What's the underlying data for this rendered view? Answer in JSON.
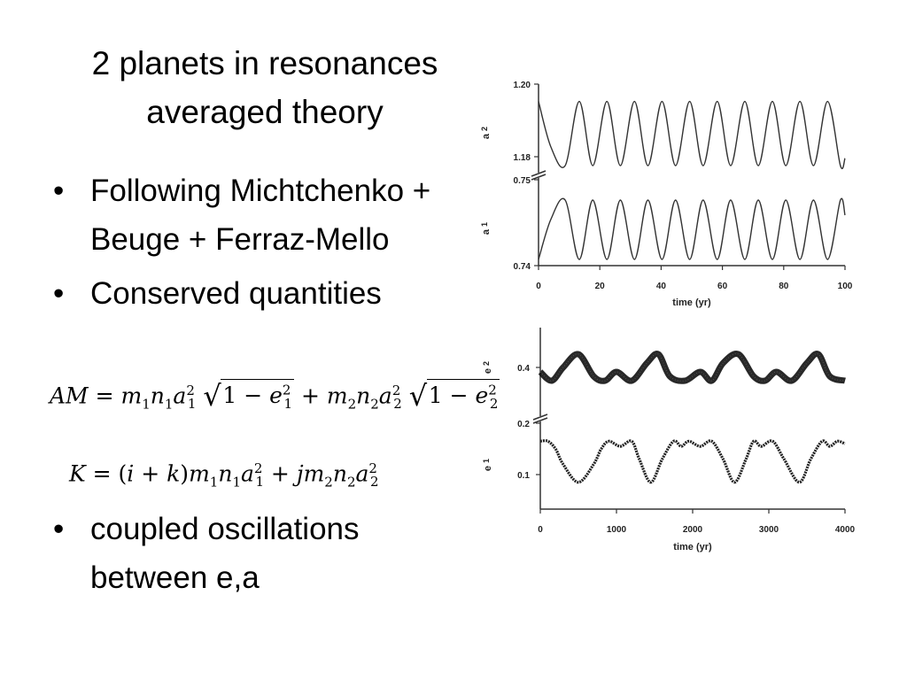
{
  "slide": {
    "title_line1": "2 planets in resonances",
    "title_line2": "averaged theory",
    "bullets": [
      "Following Michtchenko + Beuge + Ferraz-Mello",
      "Conserved quantities",
      "coupled oscillations between e,a"
    ],
    "bullet_glyph": "•"
  },
  "equations": {
    "am_lhs": "AM",
    "k_lhs": "K"
  },
  "chart_data": [
    {
      "type": "line",
      "panels": [
        "a_2",
        "a_1"
      ],
      "xlabel": "time (yr)",
      "xlim": [
        0,
        100
      ],
      "xticks": [
        "0",
        "20",
        "40",
        "60",
        "80",
        "100"
      ],
      "series": [
        {
          "name": "a2",
          "ylabel": "a 2",
          "yticks": [
            "1.20",
            "1.18"
          ],
          "amplitude_fraction": 0.85,
          "x": [
            0,
            4,
            8.7,
            13.3,
            17.7,
            22.3,
            26.7,
            31.3,
            35.7,
            40.3,
            44.7,
            49.3,
            53.7,
            58.3,
            62.7,
            67.3,
            71.7,
            76.3,
            80.7,
            85.3,
            89.7,
            94.3,
            98.5,
            100
          ],
          "y": [
            1.1995,
            1.184,
            1.1775,
            1.1995,
            1.1775,
            1.1995,
            1.1775,
            1.1995,
            1.1775,
            1.1995,
            1.1775,
            1.1995,
            1.1775,
            1.1995,
            1.1775,
            1.1995,
            1.1775,
            1.1995,
            1.1775,
            1.1995,
            1.1775,
            1.1995,
            1.1775,
            1.18
          ]
        },
        {
          "name": "a1",
          "ylabel": "a 1",
          "yticks": [
            "0.75",
            "0.74"
          ],
          "amplitude_fraction": 0.68,
          "x": [
            0,
            4,
            8.7,
            13.3,
            17.7,
            22.3,
            26.7,
            31.3,
            35.7,
            40.3,
            44.7,
            49.3,
            53.7,
            58.3,
            62.7,
            67.3,
            71.7,
            76.3,
            80.7,
            85.3,
            89.7,
            94.3,
            98.5,
            100
          ],
          "y": [
            0.743,
            0.7475,
            0.7497,
            0.743,
            0.7497,
            0.743,
            0.7497,
            0.743,
            0.7497,
            0.743,
            0.7497,
            0.743,
            0.7497,
            0.743,
            0.7497,
            0.743,
            0.7497,
            0.743,
            0.7497,
            0.743,
            0.7497,
            0.743,
            0.7497,
            0.748
          ]
        }
      ]
    },
    {
      "type": "line",
      "panels": [
        "e_2",
        "e_1"
      ],
      "xlabel": "time (yr)",
      "xlim": [
        0,
        4000
      ],
      "xticks": [
        "0",
        "1000",
        "2000",
        "3000",
        "4000"
      ],
      "series": [
        {
          "name": "e2",
          "ylabel": "e 2",
          "yticks": [
            "0.4"
          ],
          "band": "thick",
          "x": [
            0,
            150,
            300,
            500,
            700,
            850,
            1000,
            1200,
            1400,
            1550,
            1700,
            1900,
            2100,
            2250,
            2400,
            2600,
            2800,
            2950,
            3100,
            3300,
            3500,
            3650,
            3800,
            4000
          ],
          "y": [
            0.39,
            0.37,
            0.4,
            0.43,
            0.38,
            0.37,
            0.39,
            0.37,
            0.41,
            0.43,
            0.38,
            0.37,
            0.39,
            0.37,
            0.41,
            0.43,
            0.38,
            0.37,
            0.39,
            0.37,
            0.41,
            0.43,
            0.38,
            0.37
          ]
        },
        {
          "name": "e1",
          "ylabel": "e 1",
          "yticks": [
            "0.2",
            "0.1"
          ],
          "x": [
            0,
            100,
            200,
            300,
            500,
            700,
            800,
            900,
            1050,
            1200,
            1300,
            1450,
            1600,
            1750,
            1850,
            1950,
            2100,
            2250,
            2400,
            2550,
            2700,
            2800,
            2900,
            3050,
            3200,
            3400,
            3550,
            3700,
            3800,
            3900,
            4000
          ],
          "y": [
            0.165,
            0.165,
            0.15,
            0.12,
            0.085,
            0.12,
            0.15,
            0.165,
            0.155,
            0.165,
            0.13,
            0.085,
            0.13,
            0.165,
            0.155,
            0.165,
            0.155,
            0.165,
            0.13,
            0.085,
            0.13,
            0.165,
            0.155,
            0.165,
            0.13,
            0.085,
            0.13,
            0.165,
            0.155,
            0.165,
            0.16
          ]
        }
      ]
    }
  ]
}
